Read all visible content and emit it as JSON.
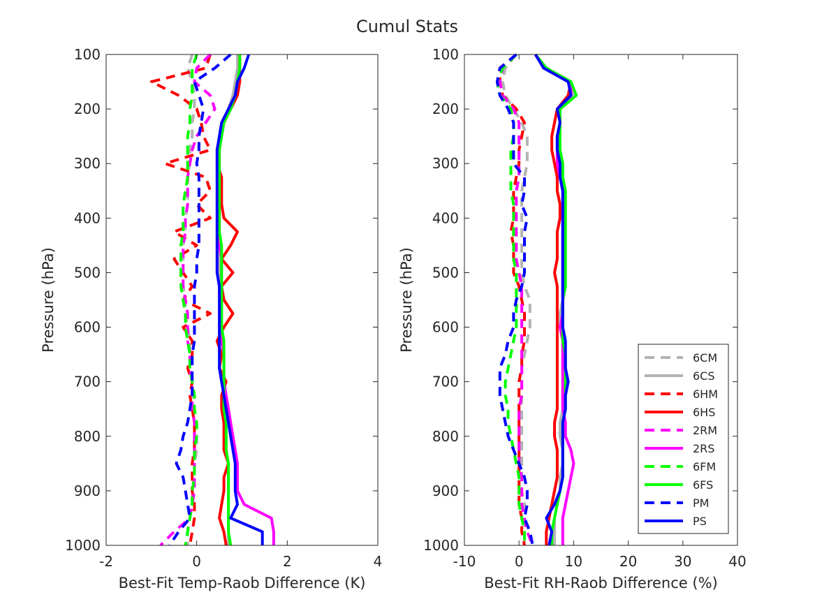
{
  "title": "Cumul Stats",
  "chart_data": [
    {
      "type": "line",
      "xlabel": "Best-Fit Temp-Raob Difference (K)",
      "ylabel": "Pressure (hPa)",
      "xlim": [
        -2,
        4
      ],
      "ylim": [
        100,
        1000
      ],
      "y_reversed": true,
      "xticks": [
        -2,
        0,
        2,
        4
      ],
      "yticks": [
        100,
        200,
        300,
        400,
        500,
        600,
        700,
        800,
        900,
        1000
      ],
      "grid": false,
      "pressure_levels": [
        100,
        125,
        150,
        175,
        200,
        225,
        250,
        275,
        300,
        325,
        350,
        375,
        400,
        425,
        450,
        475,
        500,
        525,
        550,
        575,
        600,
        625,
        650,
        675,
        700,
        725,
        750,
        775,
        800,
        825,
        850,
        875,
        900,
        925,
        950,
        975,
        1000
      ],
      "series": [
        {
          "name": "6CM",
          "color": "#b3b3b3",
          "dashed": true,
          "values": [
            -0.1,
            -0.2,
            -0.1,
            -0.05,
            -0.05,
            -0.1,
            -0.1,
            -0.15,
            -0.15,
            -0.2,
            -0.2,
            -0.2,
            -0.25,
            -0.25,
            -0.3,
            -0.3,
            -0.3,
            -0.3,
            -0.25,
            -0.25,
            -0.2,
            -0.15,
            -0.15,
            -0.15,
            -0.1,
            -0.1,
            -0.05,
            -0.05,
            0.0,
            0.0,
            -0.05,
            -0.05,
            -0.1,
            -0.1,
            -0.15,
            -0.2,
            -0.2
          ]
        },
        {
          "name": "6CS",
          "color": "#b3b3b3",
          "dashed": false,
          "values": [
            0.9,
            0.9,
            0.85,
            0.8,
            0.7,
            0.6,
            0.55,
            0.5,
            0.5,
            0.5,
            0.5,
            0.5,
            0.5,
            0.5,
            0.5,
            0.5,
            0.5,
            0.5,
            0.55,
            0.55,
            0.55,
            0.55,
            0.6,
            0.6,
            0.6,
            0.6,
            0.65,
            0.65,
            0.65,
            0.65,
            0.7,
            0.7,
            0.7,
            0.7,
            0.7,
            0.7,
            0.7
          ]
        },
        {
          "name": "6HM",
          "color": "#ff0000",
          "dashed": true,
          "values": [
            0.3,
            0.2,
            -1.0,
            -0.4,
            0.0,
            0.1,
            0.15,
            0.3,
            -0.7,
            0.2,
            0.3,
            0.0,
            0.3,
            -0.5,
            0.0,
            -0.5,
            -0.3,
            -0.1,
            -0.3,
            0.3,
            -0.3,
            -0.1,
            -0.1,
            -0.2,
            -0.1,
            -0.15,
            -0.1,
            -0.05,
            -0.05,
            -0.05,
            -0.1,
            -0.1,
            -0.1,
            -0.05,
            -0.05,
            -0.1,
            -0.15
          ]
        },
        {
          "name": "6HS",
          "color": "#ff0000",
          "dashed": false,
          "values": [
            0.95,
            0.95,
            0.95,
            0.9,
            0.75,
            0.6,
            0.5,
            0.5,
            0.45,
            0.55,
            0.55,
            0.55,
            0.6,
            0.9,
            0.75,
            0.55,
            0.8,
            0.55,
            0.6,
            0.8,
            0.6,
            0.45,
            0.55,
            0.5,
            0.65,
            0.55,
            0.55,
            0.6,
            0.6,
            0.6,
            0.7,
            0.6,
            0.6,
            0.55,
            0.5,
            0.6,
            0.65
          ]
        },
        {
          "name": "2RM",
          "color": "#ff00ff",
          "dashed": true,
          "values": [
            0.3,
            0.0,
            -0.05,
            0.3,
            0.4,
            0.2,
            0.0,
            -0.1,
            -0.15,
            -0.2,
            -0.2,
            -0.2,
            -0.25,
            -0.25,
            -0.3,
            -0.3,
            -0.3,
            -0.3,
            -0.25,
            -0.2,
            -0.2,
            -0.2,
            -0.15,
            -0.15,
            -0.1,
            -0.1,
            -0.1,
            -0.05,
            -0.05,
            -0.05,
            -0.05,
            -0.05,
            -0.05,
            -0.1,
            -0.15,
            -0.5,
            -0.8
          ]
        },
        {
          "name": "2RS",
          "color": "#ff00ff",
          "dashed": false,
          "values": [
            0.95,
            0.95,
            0.9,
            0.85,
            0.7,
            0.6,
            0.55,
            0.5,
            0.5,
            0.5,
            0.5,
            0.5,
            0.5,
            0.5,
            0.5,
            0.55,
            0.55,
            0.55,
            0.55,
            0.55,
            0.55,
            0.55,
            0.6,
            0.6,
            0.6,
            0.65,
            0.7,
            0.75,
            0.8,
            0.85,
            0.9,
            0.9,
            0.9,
            1.05,
            1.65,
            1.7,
            1.7
          ]
        },
        {
          "name": "6FM",
          "color": "#00ff00",
          "dashed": true,
          "values": [
            0.0,
            -0.1,
            -0.1,
            -0.1,
            -0.15,
            -0.15,
            -0.2,
            -0.2,
            -0.2,
            -0.2,
            -0.25,
            -0.3,
            -0.3,
            -0.3,
            -0.35,
            -0.35,
            -0.35,
            -0.35,
            -0.3,
            -0.25,
            -0.25,
            -0.2,
            -0.15,
            -0.15,
            -0.1,
            -0.05,
            -0.05,
            0.0,
            0.0,
            -0.05,
            -0.05,
            -0.05,
            -0.1,
            -0.1,
            -0.15,
            -0.2,
            -0.25
          ]
        },
        {
          "name": "6FS",
          "color": "#00ff00",
          "dashed": false,
          "values": [
            0.95,
            0.95,
            0.9,
            0.85,
            0.75,
            0.6,
            0.55,
            0.5,
            0.5,
            0.5,
            0.5,
            0.5,
            0.5,
            0.5,
            0.55,
            0.55,
            0.55,
            0.55,
            0.55,
            0.55,
            0.55,
            0.6,
            0.6,
            0.6,
            0.6,
            0.6,
            0.6,
            0.65,
            0.65,
            0.65,
            0.7,
            0.7,
            0.7,
            0.7,
            0.7,
            0.7,
            0.75
          ]
        },
        {
          "name": "PM",
          "color": "#0000ff",
          "dashed": true,
          "values": [
            0.75,
            0.4,
            -0.05,
            0.05,
            0.15,
            0.1,
            0.05,
            0.05,
            0.0,
            0.05,
            0.05,
            0.05,
            0.05,
            0.05,
            0.05,
            0.0,
            0.0,
            -0.05,
            -0.05,
            -0.05,
            -0.05,
            -0.05,
            -0.1,
            -0.1,
            -0.1,
            -0.1,
            -0.15,
            -0.2,
            -0.3,
            -0.35,
            -0.45,
            -0.3,
            -0.25,
            -0.2,
            -0.15,
            -0.4,
            -0.6
          ]
        },
        {
          "name": "PS",
          "color": "#0000ff",
          "dashed": false,
          "values": [
            1.15,
            1.05,
            0.9,
            0.85,
            0.7,
            0.55,
            0.5,
            0.45,
            0.45,
            0.45,
            0.45,
            0.45,
            0.45,
            0.45,
            0.45,
            0.45,
            0.45,
            0.5,
            0.5,
            0.5,
            0.5,
            0.5,
            0.5,
            0.5,
            0.55,
            0.6,
            0.65,
            0.7,
            0.75,
            0.8,
            0.85,
            0.85,
            0.85,
            0.9,
            0.75,
            1.45,
            1.45
          ]
        }
      ]
    },
    {
      "type": "line",
      "xlabel": "Best-Fit RH-Raob Difference (%)",
      "ylabel": "Pressure (hPa)",
      "xlim": [
        -10,
        40
      ],
      "ylim": [
        100,
        1000
      ],
      "y_reversed": true,
      "xticks": [
        -10,
        0,
        10,
        20,
        30,
        40
      ],
      "yticks": [
        100,
        200,
        300,
        400,
        500,
        600,
        700,
        800,
        900,
        1000
      ],
      "grid": false,
      "legend_position": "bottom-right",
      "pressure_levels": [
        100,
        125,
        150,
        175,
        200,
        225,
        250,
        275,
        300,
        325,
        350,
        375,
        400,
        425,
        450,
        475,
        500,
        525,
        550,
        575,
        600,
        625,
        650,
        675,
        700,
        725,
        750,
        775,
        800,
        825,
        850,
        875,
        900,
        925,
        950,
        975,
        1000
      ],
      "series": [
        {
          "name": "6CM",
          "color": "#b3b3b3",
          "dashed": true,
          "values": [
            -0.5,
            -2.5,
            -3.0,
            -2.5,
            -1.0,
            0.5,
            1.5,
            1.5,
            1.5,
            1.0,
            0.5,
            0.5,
            0.5,
            0.5,
            0.5,
            0.5,
            0.5,
            1.0,
            2.0,
            2.0,
            2.0,
            1.5,
            1.0,
            0.5,
            0.5,
            0.5,
            0.5,
            0.5,
            0.5,
            0.5,
            0.5,
            0.5,
            0.5,
            1.0,
            1.0,
            1.0,
            1.0
          ]
        },
        {
          "name": "6CS",
          "color": "#b3b3b3",
          "dashed": false,
          "values": [
            3.0,
            4.5,
            9.5,
            10.0,
            7.5,
            7.5,
            7.0,
            7.0,
            7.5,
            7.5,
            8.0,
            8.0,
            8.0,
            8.0,
            8.0,
            8.0,
            8.0,
            8.0,
            8.0,
            7.5,
            7.5,
            8.0,
            8.0,
            8.0,
            8.0,
            8.0,
            8.0,
            7.5,
            7.5,
            8.0,
            8.0,
            7.5,
            7.5,
            7.0,
            6.5,
            6.5,
            6.5
          ]
        },
        {
          "name": "6HM",
          "color": "#ff0000",
          "dashed": true,
          "values": [
            -0.5,
            -3.5,
            -3.5,
            -3.0,
            -0.5,
            1.0,
            0.5,
            0.0,
            0.0,
            -0.5,
            -1.0,
            -1.0,
            -1.0,
            -1.5,
            -1.0,
            -1.0,
            -1.0,
            0.0,
            0.5,
            1.0,
            1.0,
            1.0,
            0.5,
            0.5,
            0.0,
            0.0,
            0.0,
            0.0,
            0.0,
            0.0,
            0.0,
            0.0,
            0.0,
            0.0,
            0.5,
            0.5,
            1.0
          ]
        },
        {
          "name": "6HS",
          "color": "#ff0000",
          "dashed": false,
          "values": [
            3.0,
            5.0,
            9.5,
            9.0,
            7.0,
            6.5,
            6.0,
            6.0,
            6.5,
            7.0,
            7.0,
            7.5,
            7.5,
            7.0,
            7.0,
            7.0,
            6.5,
            7.0,
            7.0,
            7.0,
            7.0,
            7.0,
            7.0,
            7.0,
            7.0,
            7.0,
            7.0,
            6.5,
            6.5,
            7.0,
            7.0,
            7.0,
            6.5,
            6.0,
            5.5,
            5.0,
            5.0
          ]
        },
        {
          "name": "2RM",
          "color": "#ff00ff",
          "dashed": true,
          "values": [
            -0.5,
            -3.0,
            -3.5,
            -3.0,
            -1.0,
            0.0,
            0.0,
            0.0,
            0.0,
            0.0,
            -0.5,
            -0.5,
            -0.5,
            -0.5,
            -0.5,
            -0.5,
            0.0,
            0.5,
            0.5,
            0.5,
            0.5,
            0.5,
            0.5,
            0.5,
            0.5,
            0.5,
            0.0,
            0.0,
            0.0,
            0.0,
            0.0,
            0.5,
            0.5,
            0.5,
            1.0,
            1.5,
            2.5
          ]
        },
        {
          "name": "2RS",
          "color": "#ff00ff",
          "dashed": false,
          "values": [
            3.0,
            4.5,
            9.5,
            9.5,
            7.5,
            7.5,
            7.0,
            7.0,
            7.0,
            7.5,
            8.0,
            8.0,
            8.0,
            8.0,
            8.0,
            8.0,
            8.0,
            8.0,
            8.0,
            8.0,
            7.5,
            8.0,
            8.0,
            8.0,
            8.0,
            8.0,
            8.0,
            8.5,
            8.5,
            9.5,
            10.0,
            9.5,
            9.0,
            8.5,
            8.0,
            8.0,
            8.0
          ]
        },
        {
          "name": "6FM",
          "color": "#00ff00",
          "dashed": true,
          "values": [
            -0.5,
            -3.0,
            -4.0,
            -3.5,
            -1.5,
            -1.0,
            -1.0,
            -1.5,
            -1.5,
            -1.5,
            -1.5,
            -1.0,
            -1.0,
            -1.0,
            -1.0,
            -1.0,
            -0.5,
            -0.5,
            -0.5,
            -0.5,
            -0.5,
            -1.0,
            -1.5,
            -2.0,
            -2.5,
            -2.5,
            -2.0,
            -2.0,
            -1.5,
            -1.0,
            -0.5,
            0.0,
            0.0,
            0.0,
            0.5,
            1.0,
            1.0
          ]
        },
        {
          "name": "6FS",
          "color": "#00ff00",
          "dashed": false,
          "values": [
            3.0,
            5.0,
            9.5,
            10.5,
            7.5,
            7.5,
            7.5,
            7.5,
            8.0,
            8.0,
            8.5,
            8.5,
            8.5,
            8.5,
            8.5,
            8.5,
            8.5,
            8.5,
            8.0,
            8.0,
            8.0,
            8.0,
            8.5,
            8.5,
            8.5,
            8.5,
            8.5,
            8.0,
            8.0,
            8.0,
            8.0,
            8.0,
            7.5,
            7.0,
            6.5,
            6.0,
            6.0
          ]
        },
        {
          "name": "PM",
          "color": "#0000ff",
          "dashed": true,
          "values": [
            -0.5,
            -3.5,
            -4.0,
            -3.5,
            -2.0,
            -1.0,
            -1.0,
            -1.0,
            -1.0,
            1.0,
            1.0,
            0.5,
            1.5,
            1.0,
            1.0,
            1.0,
            1.0,
            0.5,
            -0.5,
            -1.0,
            -1.0,
            -2.0,
            -2.5,
            -3.5,
            -3.5,
            -3.5,
            -3.0,
            -2.5,
            -2.0,
            -1.0,
            0.0,
            1.0,
            1.5,
            1.5,
            1.0,
            2.0,
            2.5
          ]
        },
        {
          "name": "PS",
          "color": "#0000ff",
          "dashed": false,
          "values": [
            3.0,
            4.5,
            9.0,
            9.5,
            7.0,
            7.5,
            7.0,
            7.0,
            7.5,
            7.5,
            8.0,
            8.0,
            8.0,
            8.0,
            8.0,
            8.0,
            8.0,
            8.0,
            8.0,
            8.0,
            8.0,
            8.5,
            8.5,
            8.5,
            9.0,
            8.5,
            8.5,
            8.0,
            8.0,
            8.0,
            8.0,
            8.0,
            7.5,
            6.5,
            5.0,
            6.0,
            5.5
          ]
        }
      ]
    }
  ]
}
